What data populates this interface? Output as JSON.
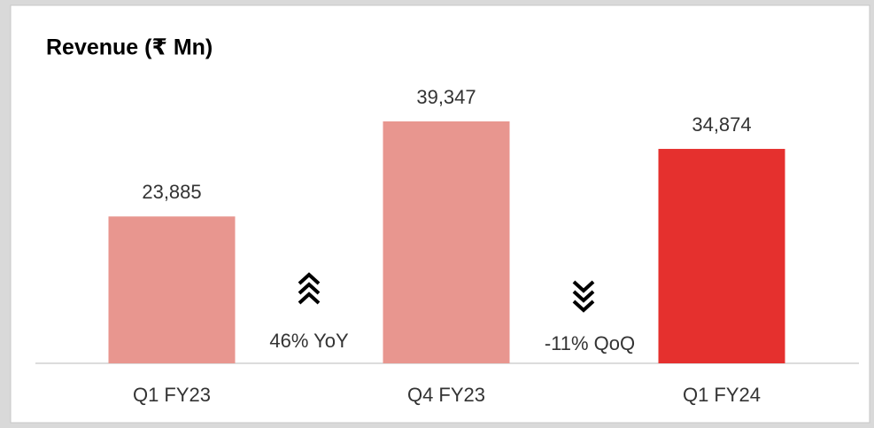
{
  "chart_data": {
    "type": "bar",
    "title": "Revenue (₹ Mn)",
    "categories": [
      "Q1 FY23",
      "Q4 FY23",
      "Q1 FY24"
    ],
    "values": [
      23885,
      39347,
      34874
    ],
    "value_labels": [
      "23,885",
      "39,347",
      "34,874"
    ],
    "colors": [
      "#e8968f",
      "#e8968f",
      "#e5302e"
    ],
    "annotations": [
      "46% YoY",
      "-11% QoQ"
    ]
  }
}
